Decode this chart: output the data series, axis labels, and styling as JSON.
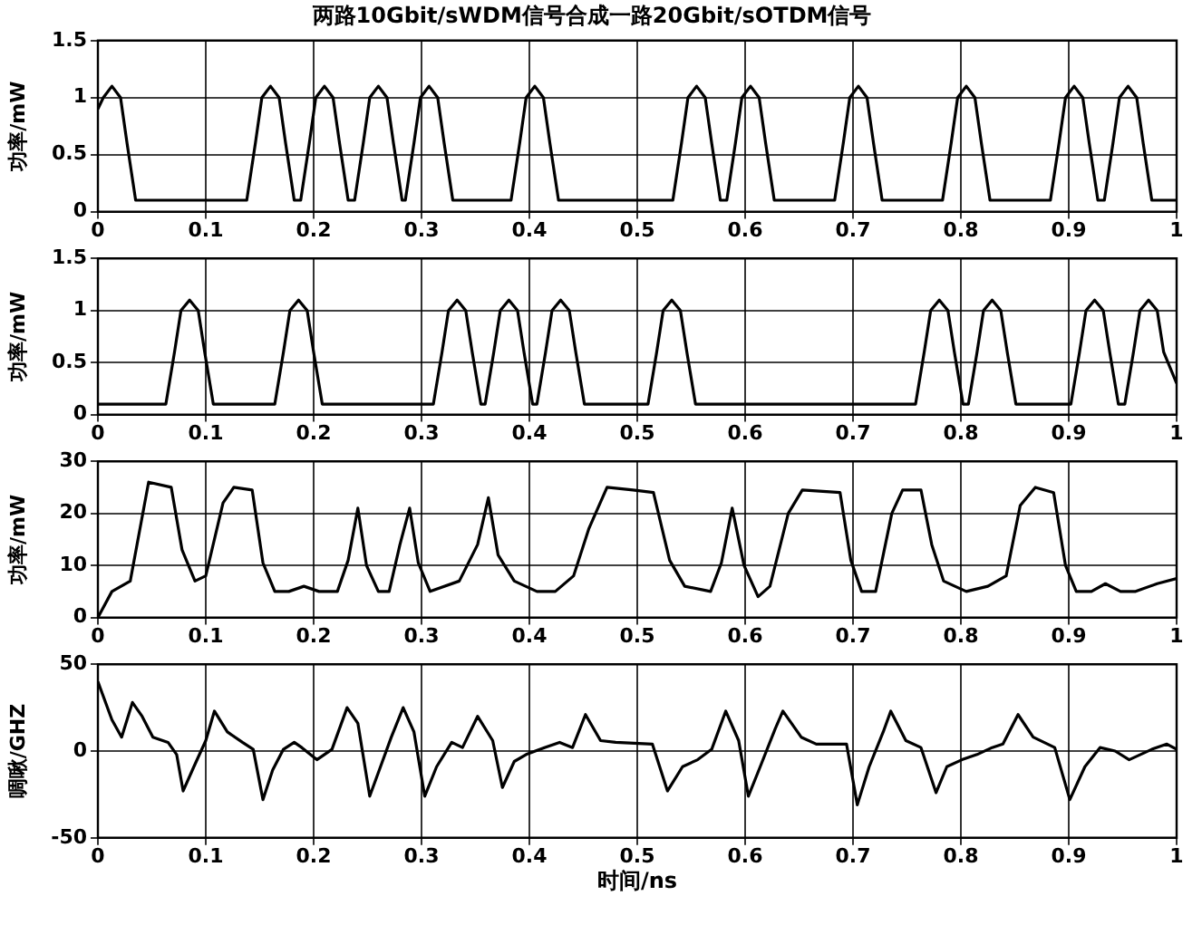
{
  "chart_data": [
    {
      "type": "line",
      "title": "两路10Gbit/sWDM信号合成一路20Gbit/sOTDM信号",
      "ylabel": "功率/mW",
      "color": "#000000",
      "grid": true,
      "xlim": [
        0,
        1
      ],
      "xticks": [
        0,
        0.1,
        0.2,
        0.3,
        0.4,
        0.5,
        0.6,
        0.7,
        0.8,
        0.9,
        1
      ],
      "ylim": [
        0,
        1.5
      ],
      "yticks": [
        0,
        0.5,
        1,
        1.5
      ],
      "x": [
        0,
        0.005,
        0.013,
        0.021,
        0.027,
        0.035,
        0.138,
        0.146,
        0.152,
        0.16,
        0.168,
        0.174,
        0.182,
        0.188,
        0.196,
        0.202,
        0.21,
        0.218,
        0.224,
        0.232,
        0.238,
        0.246,
        0.252,
        0.26,
        0.268,
        0.274,
        0.282,
        0.285,
        0.293,
        0.299,
        0.307,
        0.315,
        0.321,
        0.329,
        0.383,
        0.391,
        0.397,
        0.405,
        0.413,
        0.419,
        0.427,
        0.533,
        0.541,
        0.547,
        0.555,
        0.563,
        0.569,
        0.577,
        0.583,
        0.591,
        0.597,
        0.605,
        0.613,
        0.619,
        0.627,
        0.683,
        0.691,
        0.697,
        0.705,
        0.713,
        0.719,
        0.727,
        0.783,
        0.791,
        0.797,
        0.805,
        0.813,
        0.819,
        0.827,
        0.883,
        0.891,
        0.897,
        0.905,
        0.913,
        0.919,
        0.927,
        0.933,
        0.941,
        0.947,
        0.955,
        0.963,
        0.969,
        0.977,
        1
      ],
      "values": [
        0.9,
        1.0,
        1.1,
        1.0,
        0.6,
        0.1,
        0.1,
        0.6,
        1.0,
        1.1,
        1.0,
        0.6,
        0.1,
        0.1,
        0.6,
        1.0,
        1.1,
        1.0,
        0.6,
        0.1,
        0.1,
        0.6,
        1.0,
        1.1,
        1.0,
        0.6,
        0.1,
        0.1,
        0.6,
        1.0,
        1.1,
        1.0,
        0.6,
        0.1,
        0.1,
        0.6,
        1.0,
        1.1,
        1.0,
        0.6,
        0.1,
        0.1,
        0.6,
        1.0,
        1.1,
        1.0,
        0.6,
        0.1,
        0.1,
        0.6,
        1.0,
        1.1,
        1.0,
        0.6,
        0.1,
        0.1,
        0.6,
        1.0,
        1.1,
        1.0,
        0.6,
        0.1,
        0.1,
        0.6,
        1.0,
        1.1,
        1.0,
        0.6,
        0.1,
        0.1,
        0.6,
        1.0,
        1.1,
        1.0,
        0.6,
        0.1,
        0.1,
        0.6,
        1.0,
        1.1,
        1.0,
        0.6,
        0.1,
        0.1
      ]
    },
    {
      "type": "line",
      "ylabel": "功率/mW",
      "color": "#000000",
      "grid": true,
      "xlim": [
        0,
        1
      ],
      "xticks": [
        0,
        0.1,
        0.2,
        0.3,
        0.4,
        0.5,
        0.6,
        0.7,
        0.8,
        0.9,
        1
      ],
      "ylim": [
        0,
        1.5
      ],
      "yticks": [
        0,
        0.5,
        1,
        1.5
      ],
      "x": [
        0,
        0.063,
        0.071,
        0.077,
        0.085,
        0.093,
        0.099,
        0.107,
        0.164,
        0.172,
        0.178,
        0.186,
        0.194,
        0.2,
        0.208,
        0.311,
        0.319,
        0.325,
        0.333,
        0.341,
        0.347,
        0.355,
        0.359,
        0.367,
        0.373,
        0.381,
        0.389,
        0.395,
        0.403,
        0.407,
        0.415,
        0.421,
        0.429,
        0.437,
        0.443,
        0.451,
        0.51,
        0.518,
        0.524,
        0.532,
        0.54,
        0.546,
        0.554,
        0.758,
        0.766,
        0.772,
        0.78,
        0.788,
        0.794,
        0.802,
        0.807,
        0.815,
        0.821,
        0.829,
        0.837,
        0.843,
        0.851,
        0.902,
        0.91,
        0.916,
        0.924,
        0.932,
        0.938,
        0.946,
        0.952,
        0.96,
        0.966,
        0.974,
        0.982,
        0.988,
        1
      ],
      "values": [
        0.1,
        0.1,
        0.6,
        1.0,
        1.1,
        1.0,
        0.6,
        0.1,
        0.1,
        0.6,
        1.0,
        1.1,
        1.0,
        0.6,
        0.1,
        0.1,
        0.6,
        1.0,
        1.1,
        1.0,
        0.6,
        0.1,
        0.1,
        0.6,
        1.0,
        1.1,
        1.0,
        0.6,
        0.1,
        0.1,
        0.6,
        1.0,
        1.1,
        1.0,
        0.6,
        0.1,
        0.1,
        0.6,
        1.0,
        1.1,
        1.0,
        0.6,
        0.1,
        0.1,
        0.6,
        1.0,
        1.1,
        1.0,
        0.6,
        0.1,
        0.1,
        0.6,
        1.0,
        1.1,
        1.0,
        0.6,
        0.1,
        0.1,
        0.6,
        1.0,
        1.1,
        1.0,
        0.6,
        0.1,
        0.1,
        0.6,
        1.0,
        1.1,
        1.0,
        0.6,
        0.3
      ]
    },
    {
      "type": "line",
      "ylabel": "功率/mW",
      "color": "#000000",
      "grid": true,
      "xlim": [
        0,
        1
      ],
      "xticks": [
        0,
        0.1,
        0.2,
        0.3,
        0.4,
        0.5,
        0.6,
        0.7,
        0.8,
        0.9,
        1
      ],
      "ylim": [
        0,
        30
      ],
      "yticks": [
        0,
        10,
        20,
        30
      ],
      "x": [
        0,
        0.013,
        0.03,
        0.047,
        0.068,
        0.078,
        0.09,
        0.1,
        0.116,
        0.126,
        0.143,
        0.153,
        0.164,
        0.177,
        0.191,
        0.205,
        0.222,
        0.232,
        0.241,
        0.249,
        0.26,
        0.27,
        0.28,
        0.289,
        0.297,
        0.308,
        0.335,
        0.352,
        0.362,
        0.371,
        0.386,
        0.407,
        0.424,
        0.441,
        0.455,
        0.472,
        0.496,
        0.515,
        0.53,
        0.544,
        0.568,
        0.578,
        0.588,
        0.599,
        0.612,
        0.623,
        0.64,
        0.653,
        0.688,
        0.698,
        0.708,
        0.721,
        0.736,
        0.746,
        0.763,
        0.773,
        0.784,
        0.805,
        0.825,
        0.842,
        0.855,
        0.869,
        0.886,
        0.897,
        0.907,
        0.921,
        0.934,
        0.948,
        0.962,
        0.982,
        1
      ],
      "values": [
        0,
        5,
        7,
        26,
        25,
        13,
        7,
        8,
        22,
        25,
        24.5,
        10.5,
        5,
        5,
        6,
        5,
        5,
        11,
        21,
        10,
        5,
        5,
        14,
        21,
        10.5,
        5,
        7,
        14,
        23,
        12,
        7,
        5,
        5,
        8,
        17,
        25,
        24.5,
        24,
        11,
        6,
        5,
        10.5,
        21,
        10,
        4,
        6,
        20,
        24.5,
        24,
        11,
        5,
        5,
        20,
        24.5,
        24.5,
        14,
        7,
        5,
        6,
        8,
        21.5,
        25,
        24,
        10,
        5,
        5,
        6.5,
        5,
        5,
        6.5,
        7.5
      ]
    },
    {
      "type": "line",
      "ylabel": "啁啾/GHZ",
      "xlabel": "时间/ns",
      "color": "#000000",
      "grid": true,
      "xlim": [
        0,
        1
      ],
      "xticks": [
        0,
        0.1,
        0.2,
        0.3,
        0.4,
        0.5,
        0.6,
        0.7,
        0.8,
        0.9,
        1
      ],
      "ylim": [
        -50,
        50
      ],
      "yticks": [
        -50,
        0,
        50
      ],
      "x": [
        0,
        0.013,
        0.022,
        0.032,
        0.041,
        0.051,
        0.065,
        0.073,
        0.079,
        0.089,
        0.1,
        0.108,
        0.12,
        0.134,
        0.144,
        0.153,
        0.162,
        0.172,
        0.182,
        0.189,
        0.203,
        0.217,
        0.231,
        0.241,
        0.252,
        0.262,
        0.272,
        0.283,
        0.293,
        0.303,
        0.314,
        0.328,
        0.338,
        0.352,
        0.366,
        0.375,
        0.386,
        0.397,
        0.414,
        0.428,
        0.44,
        0.452,
        0.466,
        0.48,
        0.514,
        0.528,
        0.542,
        0.556,
        0.569,
        0.582,
        0.594,
        0.603,
        0.614,
        0.628,
        0.635,
        0.652,
        0.666,
        0.694,
        0.704,
        0.715,
        0.728,
        0.735,
        0.749,
        0.763,
        0.777,
        0.787,
        0.801,
        0.815,
        0.829,
        0.839,
        0.853,
        0.867,
        0.887,
        0.901,
        0.915,
        0.929,
        0.943,
        0.956,
        0.977,
        0.991,
        1
      ],
      "values": [
        40,
        18,
        8,
        28,
        20,
        8,
        5,
        -2,
        -23,
        -9,
        6,
        23,
        11,
        5,
        1,
        -28,
        -11,
        1,
        5,
        2,
        -5,
        1,
        25,
        16,
        -26,
        -9,
        8,
        25,
        11,
        -26,
        -9,
        5,
        2,
        20,
        6,
        -21,
        -6,
        -2,
        2,
        5,
        2,
        21,
        6,
        5,
        4,
        -23,
        -9,
        -5,
        1,
        23,
        6,
        -26,
        -9,
        13,
        23,
        8,
        4,
        4,
        -31,
        -9,
        11,
        23,
        6,
        2,
        -24,
        -9,
        -5,
        -2,
        2,
        4,
        21,
        8,
        2,
        -28,
        -9,
        2,
        0,
        -5,
        1,
        4,
        1
      ]
    }
  ]
}
